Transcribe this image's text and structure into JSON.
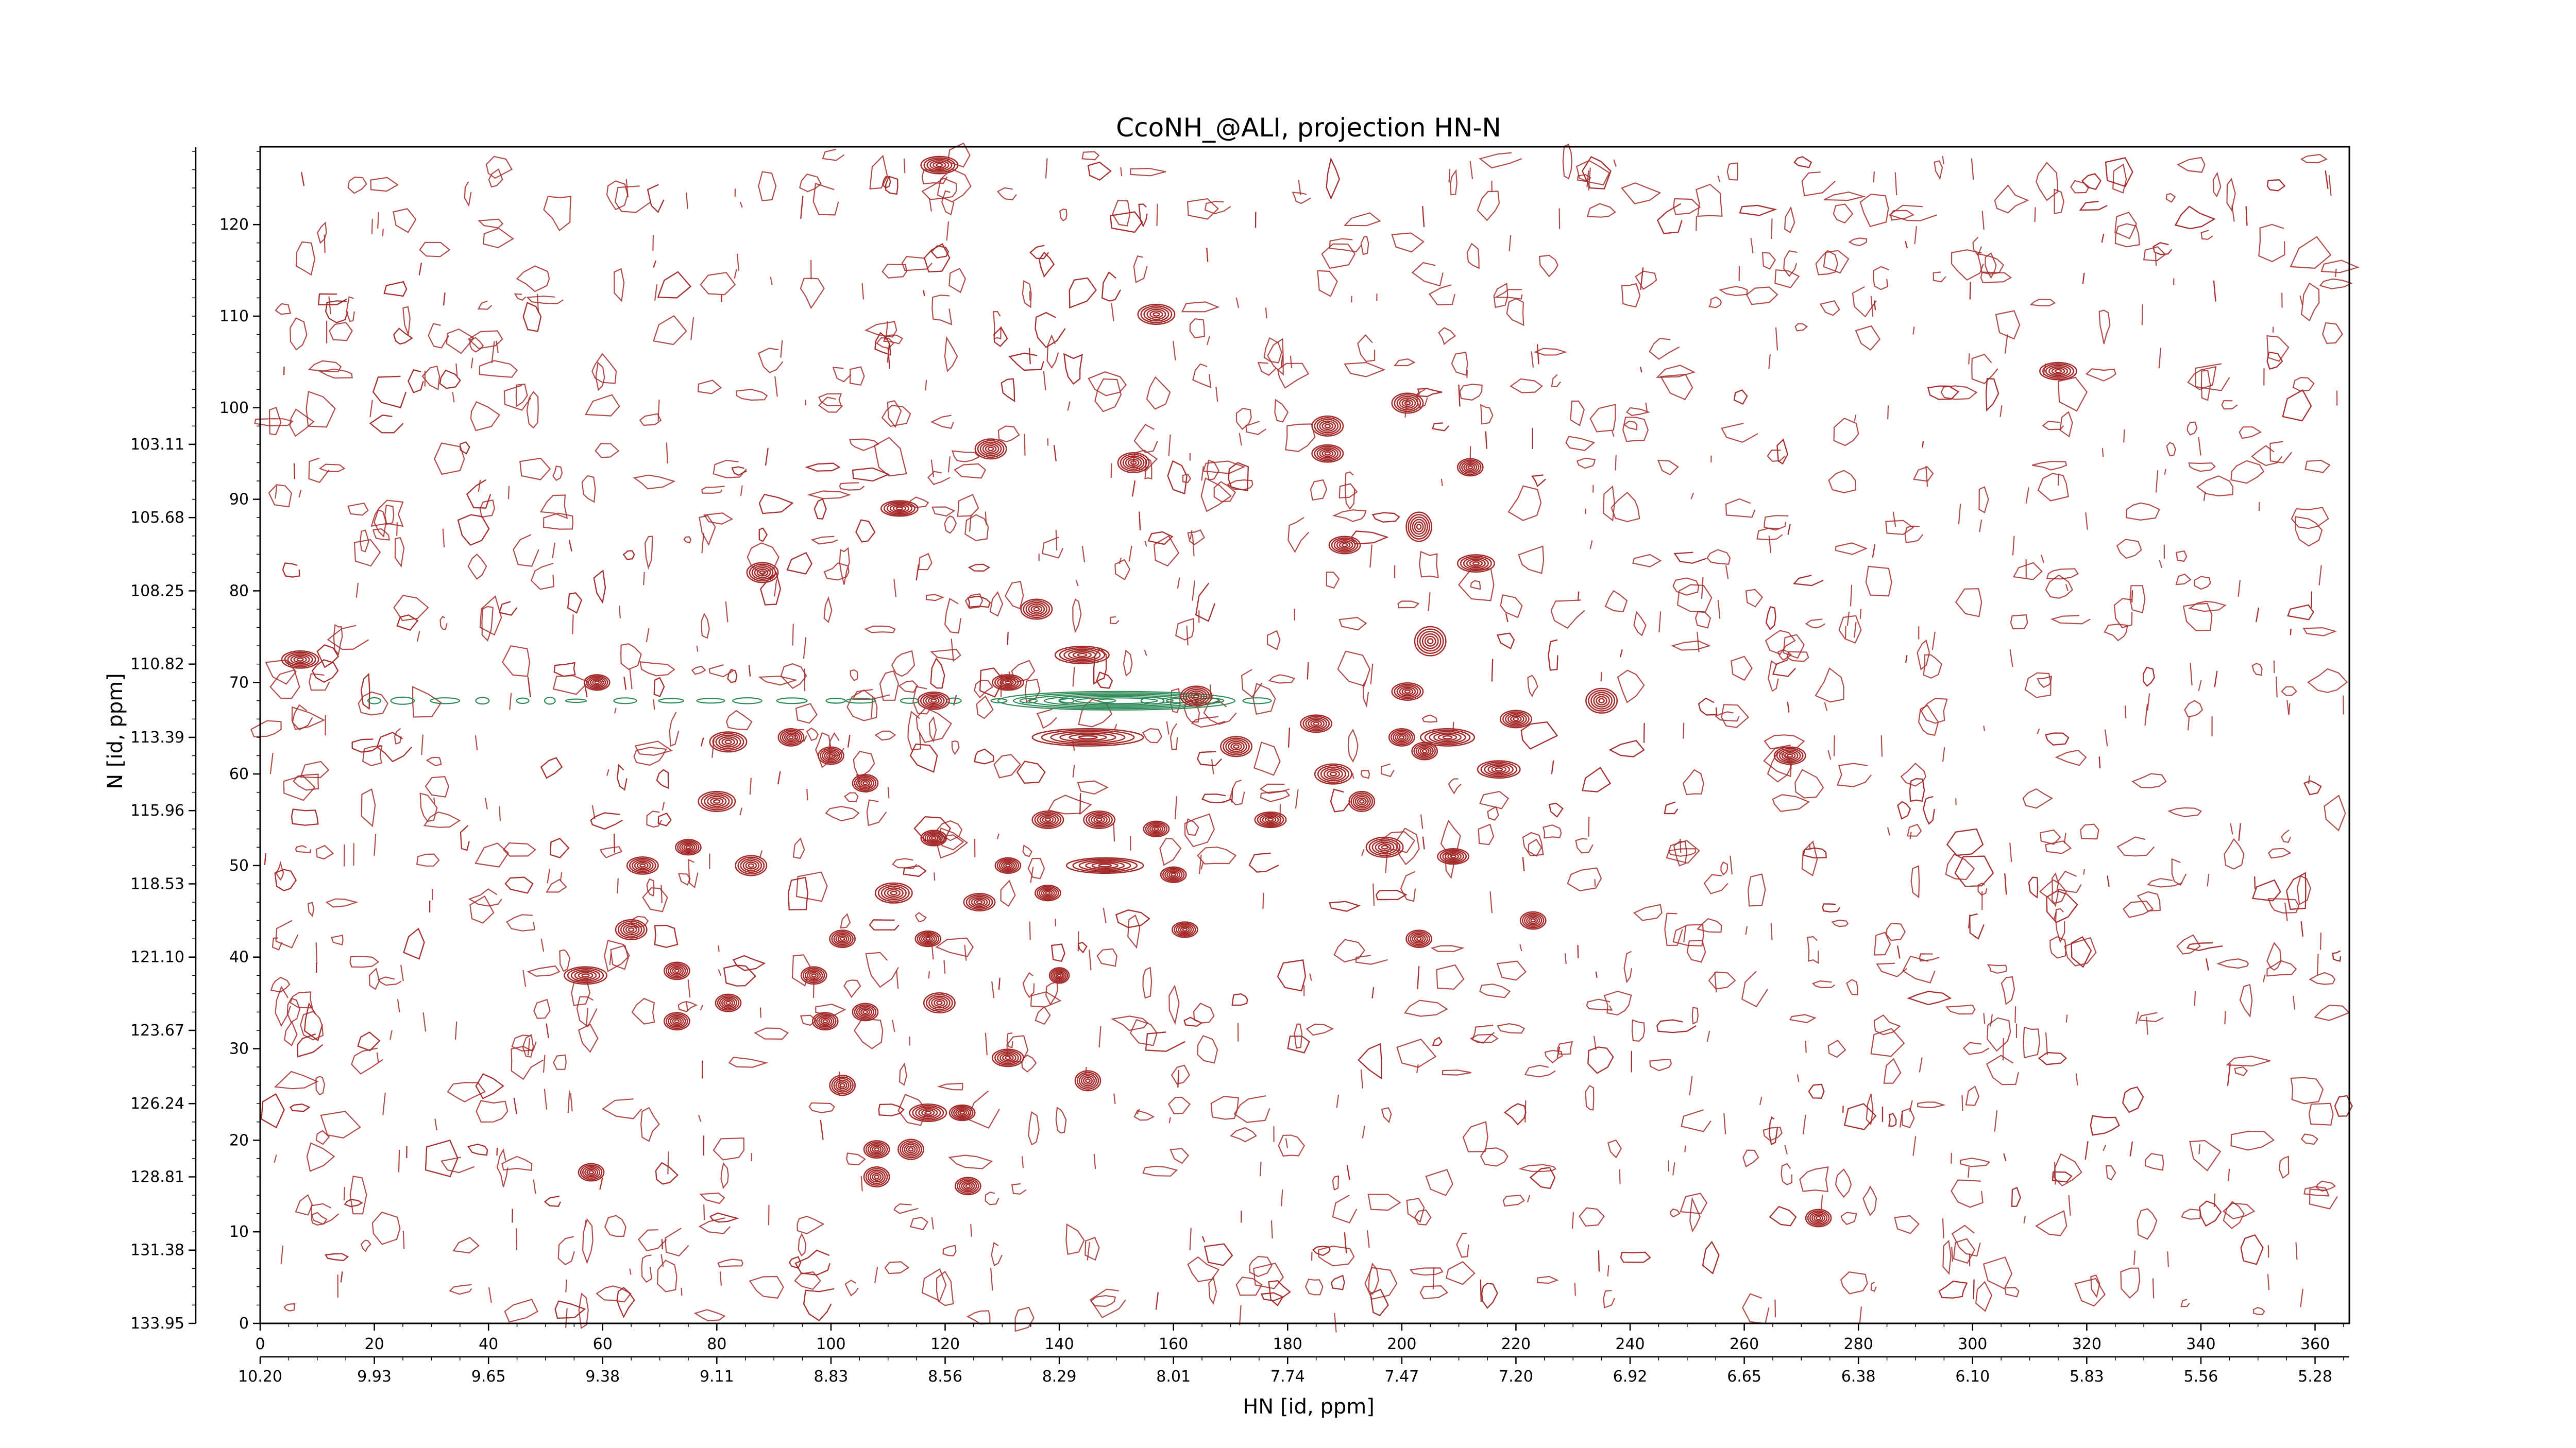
{
  "chart_data": {
    "type": "contour",
    "title": "CcoNH_@ALI, projection HN-N",
    "xlabel": "HN [id, ppm]",
    "ylabel": "N [id, ppm]",
    "x_index": {
      "range": [
        0,
        366
      ],
      "ticks": [
        0,
        20,
        40,
        60,
        80,
        100,
        120,
        140,
        160,
        180,
        200,
        220,
        240,
        260,
        280,
        300,
        320,
        340,
        360
      ]
    },
    "y_index": {
      "range": [
        0,
        128.5
      ],
      "ticks": [
        0,
        10,
        20,
        30,
        40,
        50,
        60,
        70,
        80,
        90,
        100,
        110,
        120
      ]
    },
    "x_ppm": {
      "ticks": [
        "10.20",
        "9.93",
        "9.65",
        "9.38",
        "9.11",
        "8.83",
        "8.56",
        "8.29",
        "8.01",
        "7.74",
        "7.47",
        "7.20",
        "6.92",
        "6.65",
        "6.38",
        "6.10",
        "5.83",
        "5.56",
        "5.28"
      ]
    },
    "y_ppm": {
      "ticks": [
        "133.95",
        "131.38",
        "128.81",
        "126.24",
        "123.67",
        "121.10",
        "118.53",
        "115.96",
        "113.39",
        "110.82",
        "108.25",
        "105.68",
        "103.11"
      ]
    },
    "contour_colors": {
      "positive": "#a52a2a",
      "negative": "#2e8b57"
    },
    "peaks": [
      {
        "x": 119,
        "y": 126.5,
        "w": 5,
        "h": 1.2
      },
      {
        "x": 157,
        "y": 110.2,
        "w": 5,
        "h": 1.5
      },
      {
        "x": 315,
        "y": 104,
        "w": 5,
        "h": 1.2
      },
      {
        "x": 201,
        "y": 100.5,
        "w": 4,
        "h": 1.5
      },
      {
        "x": 187,
        "y": 98,
        "w": 4,
        "h": 1.5
      },
      {
        "x": 187,
        "y": 95,
        "w": 4,
        "h": 1.2
      },
      {
        "x": 128,
        "y": 95.5,
        "w": 4,
        "h": 1.5
      },
      {
        "x": 153,
        "y": 94,
        "w": 4,
        "h": 1.5
      },
      {
        "x": 212,
        "y": 93.5,
        "w": 3,
        "h": 1.2
      },
      {
        "x": 112,
        "y": 89,
        "w": 5,
        "h": 1
      },
      {
        "x": 203,
        "y": 87,
        "w": 3,
        "h": 2.5
      },
      {
        "x": 190,
        "y": 85,
        "w": 4,
        "h": 1.2
      },
      {
        "x": 213,
        "y": 83,
        "w": 5,
        "h": 1.2
      },
      {
        "x": 88,
        "y": 82,
        "w": 4,
        "h": 1.5
      },
      {
        "x": 136,
        "y": 78,
        "w": 4,
        "h": 1.5
      },
      {
        "x": 205,
        "y": 74.5,
        "w": 4,
        "h": 2.5
      },
      {
        "x": 7,
        "y": 72.5,
        "w": 5,
        "h": 1.2
      },
      {
        "x": 144,
        "y": 73,
        "w": 8,
        "h": 1.2
      },
      {
        "x": 59,
        "y": 70,
        "w": 3,
        "h": 1
      },
      {
        "x": 131,
        "y": 70,
        "w": 4,
        "h": 1
      },
      {
        "x": 118,
        "y": 68,
        "w": 4,
        "h": 1.2
      },
      {
        "x": 164,
        "y": 68.5,
        "w": 4,
        "h": 1.5
      },
      {
        "x": 235,
        "y": 68,
        "w": 4,
        "h": 2
      },
      {
        "x": 201,
        "y": 69,
        "w": 4,
        "h": 1.2
      },
      {
        "x": 185,
        "y": 65.5,
        "w": 4,
        "h": 1.2
      },
      {
        "x": 200,
        "y": 64,
        "w": 3,
        "h": 1.2
      },
      {
        "x": 208,
        "y": 64,
        "w": 8,
        "h": 1.2
      },
      {
        "x": 220,
        "y": 66,
        "w": 4,
        "h": 1.2
      },
      {
        "x": 82,
        "y": 63.5,
        "w": 5,
        "h": 1.5
      },
      {
        "x": 93,
        "y": 64,
        "w": 3,
        "h": 1.2
      },
      {
        "x": 100,
        "y": 62,
        "w": 3,
        "h": 1.2
      },
      {
        "x": 145,
        "y": 64,
        "w": 18,
        "h": 1.2
      },
      {
        "x": 171,
        "y": 63,
        "w": 4,
        "h": 1.5
      },
      {
        "x": 268,
        "y": 62,
        "w": 4,
        "h": 1.2
      },
      {
        "x": 188,
        "y": 60,
        "w": 5,
        "h": 1.5
      },
      {
        "x": 204,
        "y": 62.5,
        "w": 3,
        "h": 1.2
      },
      {
        "x": 217,
        "y": 60.5,
        "w": 6,
        "h": 1.2
      },
      {
        "x": 106,
        "y": 59,
        "w": 3,
        "h": 1.2
      },
      {
        "x": 80,
        "y": 57,
        "w": 5,
        "h": 1.5
      },
      {
        "x": 193,
        "y": 57,
        "w": 3,
        "h": 1.5
      },
      {
        "x": 177,
        "y": 55,
        "w": 4,
        "h": 1
      },
      {
        "x": 138,
        "y": 55,
        "w": 4,
        "h": 1.2
      },
      {
        "x": 147,
        "y": 55,
        "w": 4,
        "h": 1.2
      },
      {
        "x": 157,
        "y": 54,
        "w": 3,
        "h": 1
      },
      {
        "x": 197,
        "y": 52,
        "w": 5,
        "h": 1.5
      },
      {
        "x": 209,
        "y": 51,
        "w": 4,
        "h": 1
      },
      {
        "x": 75,
        "y": 52,
        "w": 3,
        "h": 1
      },
      {
        "x": 67,
        "y": 50,
        "w": 4,
        "h": 1.2
      },
      {
        "x": 86,
        "y": 50,
        "w": 4,
        "h": 1.5
      },
      {
        "x": 118,
        "y": 53,
        "w": 3,
        "h": 1
      },
      {
        "x": 131,
        "y": 50,
        "w": 3,
        "h": 1
      },
      {
        "x": 148,
        "y": 50,
        "w": 12,
        "h": 1
      },
      {
        "x": 160,
        "y": 49,
        "w": 3,
        "h": 1
      },
      {
        "x": 111,
        "y": 47,
        "w": 5,
        "h": 1.5
      },
      {
        "x": 126,
        "y": 46,
        "w": 4,
        "h": 1.2
      },
      {
        "x": 138,
        "y": 47,
        "w": 3,
        "h": 1
      },
      {
        "x": 223,
        "y": 44,
        "w": 3,
        "h": 1.2
      },
      {
        "x": 65,
        "y": 43,
        "w": 4,
        "h": 1.5
      },
      {
        "x": 102,
        "y": 42,
        "w": 3,
        "h": 1.2
      },
      {
        "x": 117,
        "y": 42,
        "w": 3,
        "h": 1
      },
      {
        "x": 162,
        "y": 43,
        "w": 3,
        "h": 1
      },
      {
        "x": 203,
        "y": 42,
        "w": 3,
        "h": 1.2
      },
      {
        "x": 57,
        "y": 38,
        "w": 6,
        "h": 1.2
      },
      {
        "x": 73,
        "y": 38.5,
        "w": 3,
        "h": 1.2
      },
      {
        "x": 97,
        "y": 38,
        "w": 3,
        "h": 1.2
      },
      {
        "x": 140,
        "y": 38,
        "w": 2,
        "h": 1
      },
      {
        "x": 82,
        "y": 35,
        "w": 3,
        "h": 1.2
      },
      {
        "x": 119,
        "y": 35,
        "w": 4,
        "h": 1.5
      },
      {
        "x": 73,
        "y": 33,
        "w": 3,
        "h": 1.2
      },
      {
        "x": 99,
        "y": 33,
        "w": 3,
        "h": 1.2
      },
      {
        "x": 106,
        "y": 34,
        "w": 3,
        "h": 1.2
      },
      {
        "x": 131,
        "y": 29,
        "w": 4,
        "h": 1.2
      },
      {
        "x": 145,
        "y": 26.5,
        "w": 3,
        "h": 1.5
      },
      {
        "x": 102,
        "y": 26,
        "w": 3,
        "h": 1.5
      },
      {
        "x": 117,
        "y": 23,
        "w": 5,
        "h": 1.2
      },
      {
        "x": 123,
        "y": 23,
        "w": 3,
        "h": 1
      },
      {
        "x": 108,
        "y": 19,
        "w": 3,
        "h": 1.2
      },
      {
        "x": 114,
        "y": 19,
        "w": 3,
        "h": 1.5
      },
      {
        "x": 108,
        "y": 16,
        "w": 3,
        "h": 1.5
      },
      {
        "x": 58,
        "y": 16.5,
        "w": 3,
        "h": 1.2
      },
      {
        "x": 124,
        "y": 15,
        "w": 3,
        "h": 1.2
      },
      {
        "x": 273,
        "y": 11.5,
        "w": 3,
        "h": 1.2
      }
    ],
    "negative_ridge": {
      "y": 68,
      "x_range": [
        20,
        180
      ]
    }
  }
}
